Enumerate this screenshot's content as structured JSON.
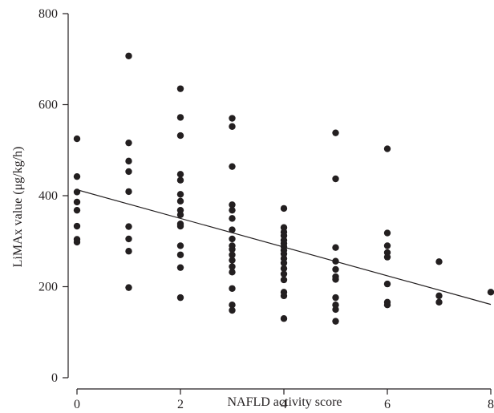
{
  "chart_data": {
    "type": "scatter",
    "title": "",
    "xlabel": "NAFLD activity score",
    "ylabel": "LiMAx value (μg/kg/h)",
    "xlim": [
      0,
      8
    ],
    "ylim": [
      0,
      800
    ],
    "x_ticks": [
      "0",
      "2",
      "4",
      "6",
      "8"
    ],
    "y_ticks": [
      "0",
      "200",
      "400",
      "600",
      "800"
    ],
    "grid": false,
    "legend": "none",
    "point_color": "#231f20",
    "trend_line": {
      "x": [
        0,
        8
      ],
      "y": [
        413,
        161
      ]
    },
    "points": [
      {
        "x": 0,
        "y": 525
      },
      {
        "x": 0,
        "y": 442
      },
      {
        "x": 0,
        "y": 408
      },
      {
        "x": 0,
        "y": 386
      },
      {
        "x": 0,
        "y": 368
      },
      {
        "x": 0,
        "y": 333
      },
      {
        "x": 0,
        "y": 304
      },
      {
        "x": 0,
        "y": 298
      },
      {
        "x": 1,
        "y": 707
      },
      {
        "x": 1,
        "y": 516
      },
      {
        "x": 1,
        "y": 476
      },
      {
        "x": 1,
        "y": 453
      },
      {
        "x": 1,
        "y": 409
      },
      {
        "x": 1,
        "y": 332
      },
      {
        "x": 1,
        "y": 305
      },
      {
        "x": 1,
        "y": 278
      },
      {
        "x": 1,
        "y": 198
      },
      {
        "x": 2,
        "y": 635
      },
      {
        "x": 2,
        "y": 572
      },
      {
        "x": 2,
        "y": 532
      },
      {
        "x": 2,
        "y": 447
      },
      {
        "x": 2,
        "y": 434
      },
      {
        "x": 2,
        "y": 403
      },
      {
        "x": 2,
        "y": 388
      },
      {
        "x": 2,
        "y": 368
      },
      {
        "x": 2,
        "y": 358
      },
      {
        "x": 2,
        "y": 338
      },
      {
        "x": 2,
        "y": 333
      },
      {
        "x": 2,
        "y": 290
      },
      {
        "x": 2,
        "y": 270
      },
      {
        "x": 2,
        "y": 242
      },
      {
        "x": 2,
        "y": 176
      },
      {
        "x": 3,
        "y": 570
      },
      {
        "x": 3,
        "y": 552
      },
      {
        "x": 3,
        "y": 464
      },
      {
        "x": 3,
        "y": 380
      },
      {
        "x": 3,
        "y": 368
      },
      {
        "x": 3,
        "y": 350
      },
      {
        "x": 3,
        "y": 325
      },
      {
        "x": 3,
        "y": 305
      },
      {
        "x": 3,
        "y": 290
      },
      {
        "x": 3,
        "y": 282
      },
      {
        "x": 3,
        "y": 270
      },
      {
        "x": 3,
        "y": 258
      },
      {
        "x": 3,
        "y": 244
      },
      {
        "x": 3,
        "y": 232
      },
      {
        "x": 3,
        "y": 196
      },
      {
        "x": 3,
        "y": 160
      },
      {
        "x": 3,
        "y": 148
      },
      {
        "x": 4,
        "y": 372
      },
      {
        "x": 4,
        "y": 330
      },
      {
        "x": 4,
        "y": 320
      },
      {
        "x": 4,
        "y": 312
      },
      {
        "x": 4,
        "y": 302
      },
      {
        "x": 4,
        "y": 295
      },
      {
        "x": 4,
        "y": 288
      },
      {
        "x": 4,
        "y": 280
      },
      {
        "x": 4,
        "y": 272
      },
      {
        "x": 4,
        "y": 262
      },
      {
        "x": 4,
        "y": 252
      },
      {
        "x": 4,
        "y": 240
      },
      {
        "x": 4,
        "y": 228
      },
      {
        "x": 4,
        "y": 215
      },
      {
        "x": 4,
        "y": 188
      },
      {
        "x": 4,
        "y": 180
      },
      {
        "x": 4,
        "y": 130
      },
      {
        "x": 5,
        "y": 538
      },
      {
        "x": 5,
        "y": 437
      },
      {
        "x": 5,
        "y": 286
      },
      {
        "x": 5,
        "y": 256
      },
      {
        "x": 5,
        "y": 238
      },
      {
        "x": 5,
        "y": 222
      },
      {
        "x": 5,
        "y": 216
      },
      {
        "x": 5,
        "y": 176
      },
      {
        "x": 5,
        "y": 160
      },
      {
        "x": 5,
        "y": 150
      },
      {
        "x": 5,
        "y": 124
      },
      {
        "x": 6,
        "y": 503
      },
      {
        "x": 6,
        "y": 318
      },
      {
        "x": 6,
        "y": 290
      },
      {
        "x": 6,
        "y": 275
      },
      {
        "x": 6,
        "y": 265
      },
      {
        "x": 6,
        "y": 206
      },
      {
        "x": 6,
        "y": 166
      },
      {
        "x": 6,
        "y": 160
      },
      {
        "x": 7,
        "y": 255
      },
      {
        "x": 7,
        "y": 180
      },
      {
        "x": 7,
        "y": 166
      },
      {
        "x": 8,
        "y": 188
      }
    ]
  }
}
